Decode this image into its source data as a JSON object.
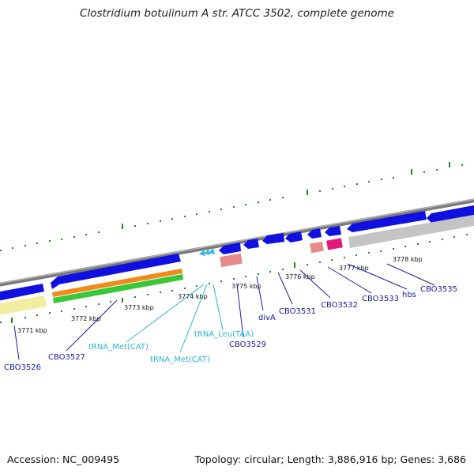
{
  "title": "Clostridium botulinum A str. ATCC 3502, complete genome",
  "footer": {
    "accession": "Accession: NC_009495",
    "stats": "Topology: circular; Length: 3,886,916 bp; Genes: 3,686"
  },
  "scale_labels": [
    "3771 kbp",
    "3772 kbp",
    "3773 kbp",
    "3774 kbp",
    "3775 kbp",
    "3776 kbp",
    "3777 kbp",
    "3778 kbp"
  ],
  "gene_labels": [
    "CBO3526",
    "CBO3527",
    "CBO3529",
    "divA",
    "CBO3531",
    "CBO3532",
    "CBO3533",
    "hbs",
    "CBO3535"
  ],
  "rna_labels": [
    "tRNA_Met(CAT)",
    "tRNA_Met(CAT)",
    "tRNA_Leu(TAA)"
  ],
  "colors": {
    "gene": "#1010e0",
    "cds_yellow": "#f2eda0",
    "cds_orange": "#f08a18",
    "cds_green": "#38c838",
    "pseudo_pink": "#e88a8a",
    "magenta": "#e8187a",
    "grey": "#c4c4c4",
    "tick_green": "#1a8a1a",
    "trna": "#3ab8e8",
    "label_blue": "#1a1aa8",
    "label_cyan": "#2bb4d8"
  }
}
